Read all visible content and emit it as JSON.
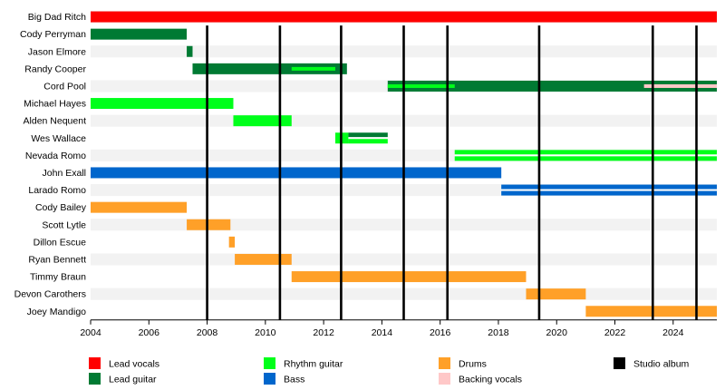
{
  "chart_data": {
    "type": "timeline",
    "title": "",
    "xlabel": "",
    "ylabel": "",
    "xlim": [
      2004,
      2025.5
    ],
    "x_ticks": [
      "2004",
      "2006",
      "2008",
      "2010",
      "2012",
      "2014",
      "2016",
      "2018",
      "2020",
      "2022",
      "2024"
    ],
    "grid": "alternating row bands",
    "legend_position": "bottom",
    "roles": {
      "lead_vocals": {
        "label": "Lead vocals",
        "color": "#ff0000"
      },
      "lead_guitar": {
        "label": "Lead guitar",
        "color": "#007a33"
      },
      "rhythm_guitar": {
        "label": "Rhythm guitar",
        "color": "#00ff1a"
      },
      "bass": {
        "label": "Bass",
        "color": "#0066cc"
      },
      "drums": {
        "label": "Drums",
        "color": "#ffa028"
      },
      "backing_vocals": {
        "label": "Backing vocals",
        "color": "#ffc8c8"
      },
      "studio_album": {
        "label": "Studio album",
        "color": "#000000"
      }
    },
    "legend_order": [
      "lead_vocals",
      "lead_guitar",
      "rhythm_guitar",
      "bass",
      "drums",
      "backing_vocals",
      "studio_album"
    ],
    "members": [
      {
        "name": "Big Dad Ritch",
        "bars": [
          {
            "role": "lead_vocals",
            "start": 2004.0,
            "end": 2025.5
          }
        ]
      },
      {
        "name": "Cody Perryman",
        "bars": [
          {
            "role": "lead_guitar",
            "start": 2004.0,
            "end": 2007.3
          }
        ]
      },
      {
        "name": "Jason Elmore",
        "bars": [
          {
            "role": "lead_guitar",
            "start": 2007.3,
            "end": 2007.5
          }
        ]
      },
      {
        "name": "Randy Cooper",
        "bars": [
          {
            "role": "lead_guitar",
            "start": 2007.5,
            "end": 2012.8
          },
          {
            "role": "rhythm_guitar",
            "start": 2010.9,
            "end": 2012.4,
            "style": "stripe"
          }
        ]
      },
      {
        "name": "Cord Pool",
        "bars": [
          {
            "role": "lead_guitar",
            "start": 2014.2,
            "end": 2025.5
          },
          {
            "role": "rhythm_guitar",
            "start": 2014.2,
            "end": 2016.5,
            "style": "stripe"
          },
          {
            "role": "backing_vocals",
            "start": 2023.0,
            "end": 2025.5,
            "style": "stripe"
          }
        ]
      },
      {
        "name": "Michael Hayes",
        "bars": [
          {
            "role": "rhythm_guitar",
            "start": 2004.0,
            "end": 2008.9
          }
        ]
      },
      {
        "name": "Alden Nequent",
        "bars": [
          {
            "role": "rhythm_guitar",
            "start": 2008.9,
            "end": 2010.9
          }
        ]
      },
      {
        "name": "Wes Wallace",
        "bars": [
          {
            "role": "rhythm_guitar",
            "start": 2012.4,
            "end": 2012.85
          },
          {
            "role": "lead_guitar",
            "start": 2012.85,
            "end": 2014.2,
            "style": "split",
            "second": "rhythm_guitar"
          }
        ]
      },
      {
        "name": "Nevada Romo",
        "bars": [
          {
            "role": "rhythm_guitar",
            "start": 2016.5,
            "end": 2025.5,
            "style": "split",
            "second": "rhythm_guitar"
          }
        ]
      },
      {
        "name": "John Exall",
        "bars": [
          {
            "role": "bass",
            "start": 2004.0,
            "end": 2018.1
          }
        ]
      },
      {
        "name": "Larado Romo",
        "bars": [
          {
            "role": "bass",
            "start": 2018.1,
            "end": 2025.5,
            "style": "split",
            "second": "bass"
          }
        ]
      },
      {
        "name": "Cody Bailey",
        "bars": [
          {
            "role": "drums",
            "start": 2004.0,
            "end": 2007.3
          }
        ]
      },
      {
        "name": "Scott Lytle",
        "bars": [
          {
            "role": "drums",
            "start": 2007.3,
            "end": 2008.8
          }
        ]
      },
      {
        "name": "Dillon Escue",
        "bars": [
          {
            "role": "drums",
            "start": 2008.75,
            "end": 2008.95
          }
        ]
      },
      {
        "name": "Ryan Bennett",
        "bars": [
          {
            "role": "drums",
            "start": 2008.95,
            "end": 2010.9
          }
        ]
      },
      {
        "name": "Timmy Braun",
        "bars": [
          {
            "role": "drums",
            "start": 2010.9,
            "end": 2018.95
          }
        ]
      },
      {
        "name": "Devon Carothers",
        "bars": [
          {
            "role": "drums",
            "start": 2018.95,
            "end": 2021.0
          }
        ]
      },
      {
        "name": "Joey Mandigo",
        "bars": [
          {
            "role": "drums",
            "start": 2021.0,
            "end": 2025.5
          }
        ]
      }
    ],
    "studio_albums": [
      2008.0,
      2010.5,
      2012.6,
      2014.75,
      2016.25,
      2019.4,
      2023.3,
      2024.8
    ]
  }
}
